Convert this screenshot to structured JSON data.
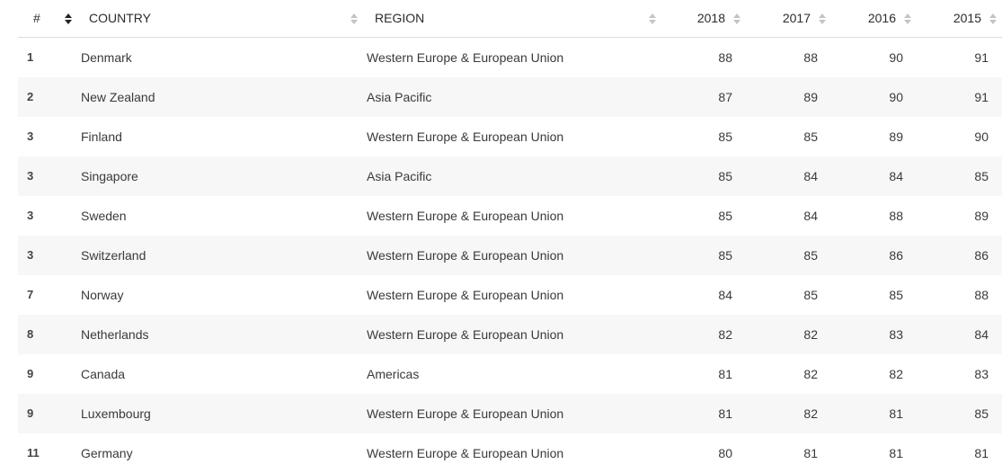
{
  "header": {
    "rank": "#",
    "country": "COUNTRY",
    "region": "REGION",
    "y2018": "2018",
    "y2017": "2017",
    "y2016": "2016",
    "y2015": "2015"
  },
  "sort": {
    "active_column": "country",
    "icon": "sort-arrows-icon"
  },
  "rows": [
    {
      "rank": "1",
      "country": "Denmark",
      "region": "Western Europe & European Union",
      "y2018": "88",
      "y2017": "88",
      "y2016": "90",
      "y2015": "91"
    },
    {
      "rank": "2",
      "country": "New Zealand",
      "region": "Asia Pacific",
      "y2018": "87",
      "y2017": "89",
      "y2016": "90",
      "y2015": "91"
    },
    {
      "rank": "3",
      "country": "Finland",
      "region": "Western Europe & European Union",
      "y2018": "85",
      "y2017": "85",
      "y2016": "89",
      "y2015": "90"
    },
    {
      "rank": "3",
      "country": "Singapore",
      "region": "Asia Pacific",
      "y2018": "85",
      "y2017": "84",
      "y2016": "84",
      "y2015": "85"
    },
    {
      "rank": "3",
      "country": "Sweden",
      "region": "Western Europe & European Union",
      "y2018": "85",
      "y2017": "84",
      "y2016": "88",
      "y2015": "89"
    },
    {
      "rank": "3",
      "country": "Switzerland",
      "region": "Western Europe & European Union",
      "y2018": "85",
      "y2017": "85",
      "y2016": "86",
      "y2015": "86"
    },
    {
      "rank": "7",
      "country": "Norway",
      "region": "Western Europe & European Union",
      "y2018": "84",
      "y2017": "85",
      "y2016": "85",
      "y2015": "88"
    },
    {
      "rank": "8",
      "country": "Netherlands",
      "region": "Western Europe & European Union",
      "y2018": "82",
      "y2017": "82",
      "y2016": "83",
      "y2015": "84"
    },
    {
      "rank": "9",
      "country": "Canada",
      "region": "Americas",
      "y2018": "81",
      "y2017": "82",
      "y2016": "82",
      "y2015": "83"
    },
    {
      "rank": "9",
      "country": "Luxembourg",
      "region": "Western Europe & European Union",
      "y2018": "81",
      "y2017": "82",
      "y2016": "81",
      "y2015": "85"
    },
    {
      "rank": "11",
      "country": "Germany",
      "region": "Western Europe & European Union",
      "y2018": "80",
      "y2017": "81",
      "y2016": "81",
      "y2015": "81"
    }
  ],
  "colors": {
    "row_alt": "#f7f7f7",
    "header_border": "#dcdcdc",
    "sort_inactive": "#c4c4c4",
    "sort_active": "#222222"
  }
}
